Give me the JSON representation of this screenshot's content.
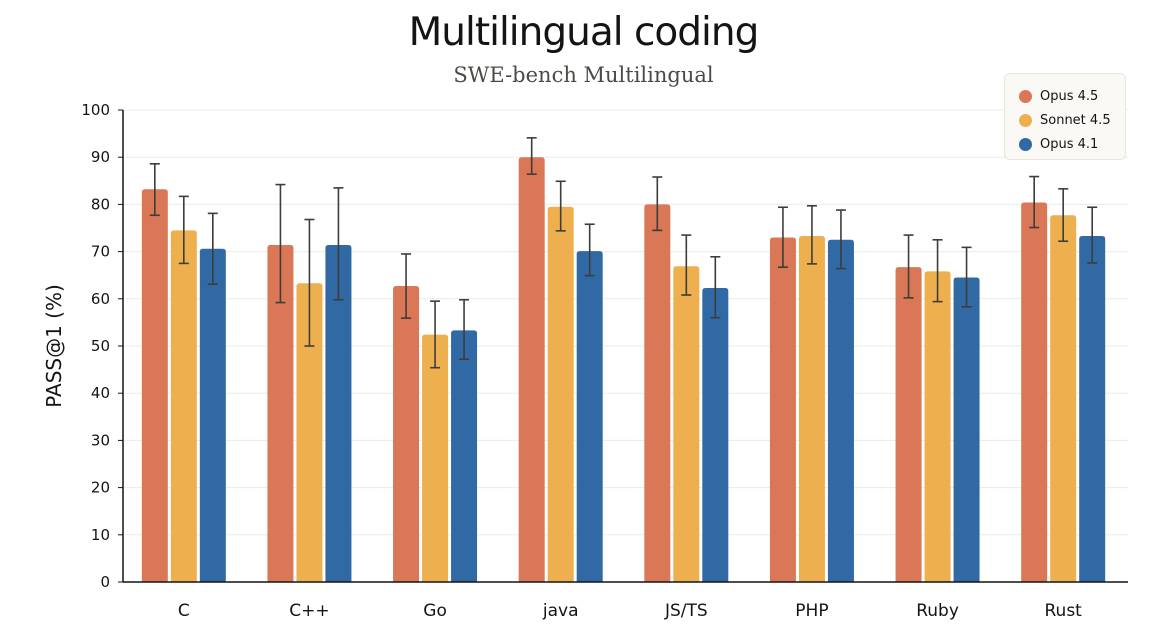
{
  "chart_data": {
    "type": "bar",
    "title": "Multilingual coding",
    "subtitle": "SWE-bench Multilingual",
    "xlabel": "",
    "ylabel": "PASS@1 (%)",
    "ylim": [
      0,
      100
    ],
    "yticks": [
      0,
      10,
      20,
      30,
      40,
      50,
      60,
      70,
      80,
      90,
      100
    ],
    "grid": true,
    "legend_position": "top-right",
    "categories": [
      "C",
      "C++",
      "Go",
      "java",
      "JS/TS",
      "PHP",
      "Ruby",
      "Rust"
    ],
    "series": [
      {
        "name": "Opus 4.5",
        "color": "#d97757",
        "values": [
          83.2,
          71.4,
          62.7,
          90.0,
          80.0,
          73.0,
          66.7,
          80.4
        ],
        "error_low": [
          77.7,
          59.2,
          55.9,
          86.4,
          74.5,
          66.7,
          60.2,
          75.1
        ],
        "error_high": [
          88.6,
          84.2,
          69.5,
          94.1,
          85.8,
          79.4,
          73.5,
          85.9
        ]
      },
      {
        "name": "Sonnet 4.5",
        "color": "#eeb04f",
        "values": [
          74.5,
          63.3,
          52.4,
          79.5,
          66.9,
          73.3,
          65.8,
          77.7
        ],
        "error_low": [
          67.5,
          50.0,
          45.4,
          74.4,
          60.8,
          67.4,
          59.4,
          72.2
        ],
        "error_high": [
          81.7,
          76.8,
          59.5,
          84.9,
          73.5,
          79.7,
          72.5,
          83.3
        ]
      },
      {
        "name": "Opus 4.1",
        "color": "#3169a4",
        "values": [
          70.6,
          71.4,
          53.3,
          70.1,
          62.3,
          72.5,
          64.5,
          73.3
        ],
        "error_low": [
          63.1,
          59.8,
          47.2,
          64.9,
          56.0,
          66.4,
          58.3,
          67.6
        ],
        "error_high": [
          78.1,
          83.5,
          59.8,
          75.8,
          68.9,
          78.8,
          70.9,
          79.4
        ]
      }
    ]
  }
}
